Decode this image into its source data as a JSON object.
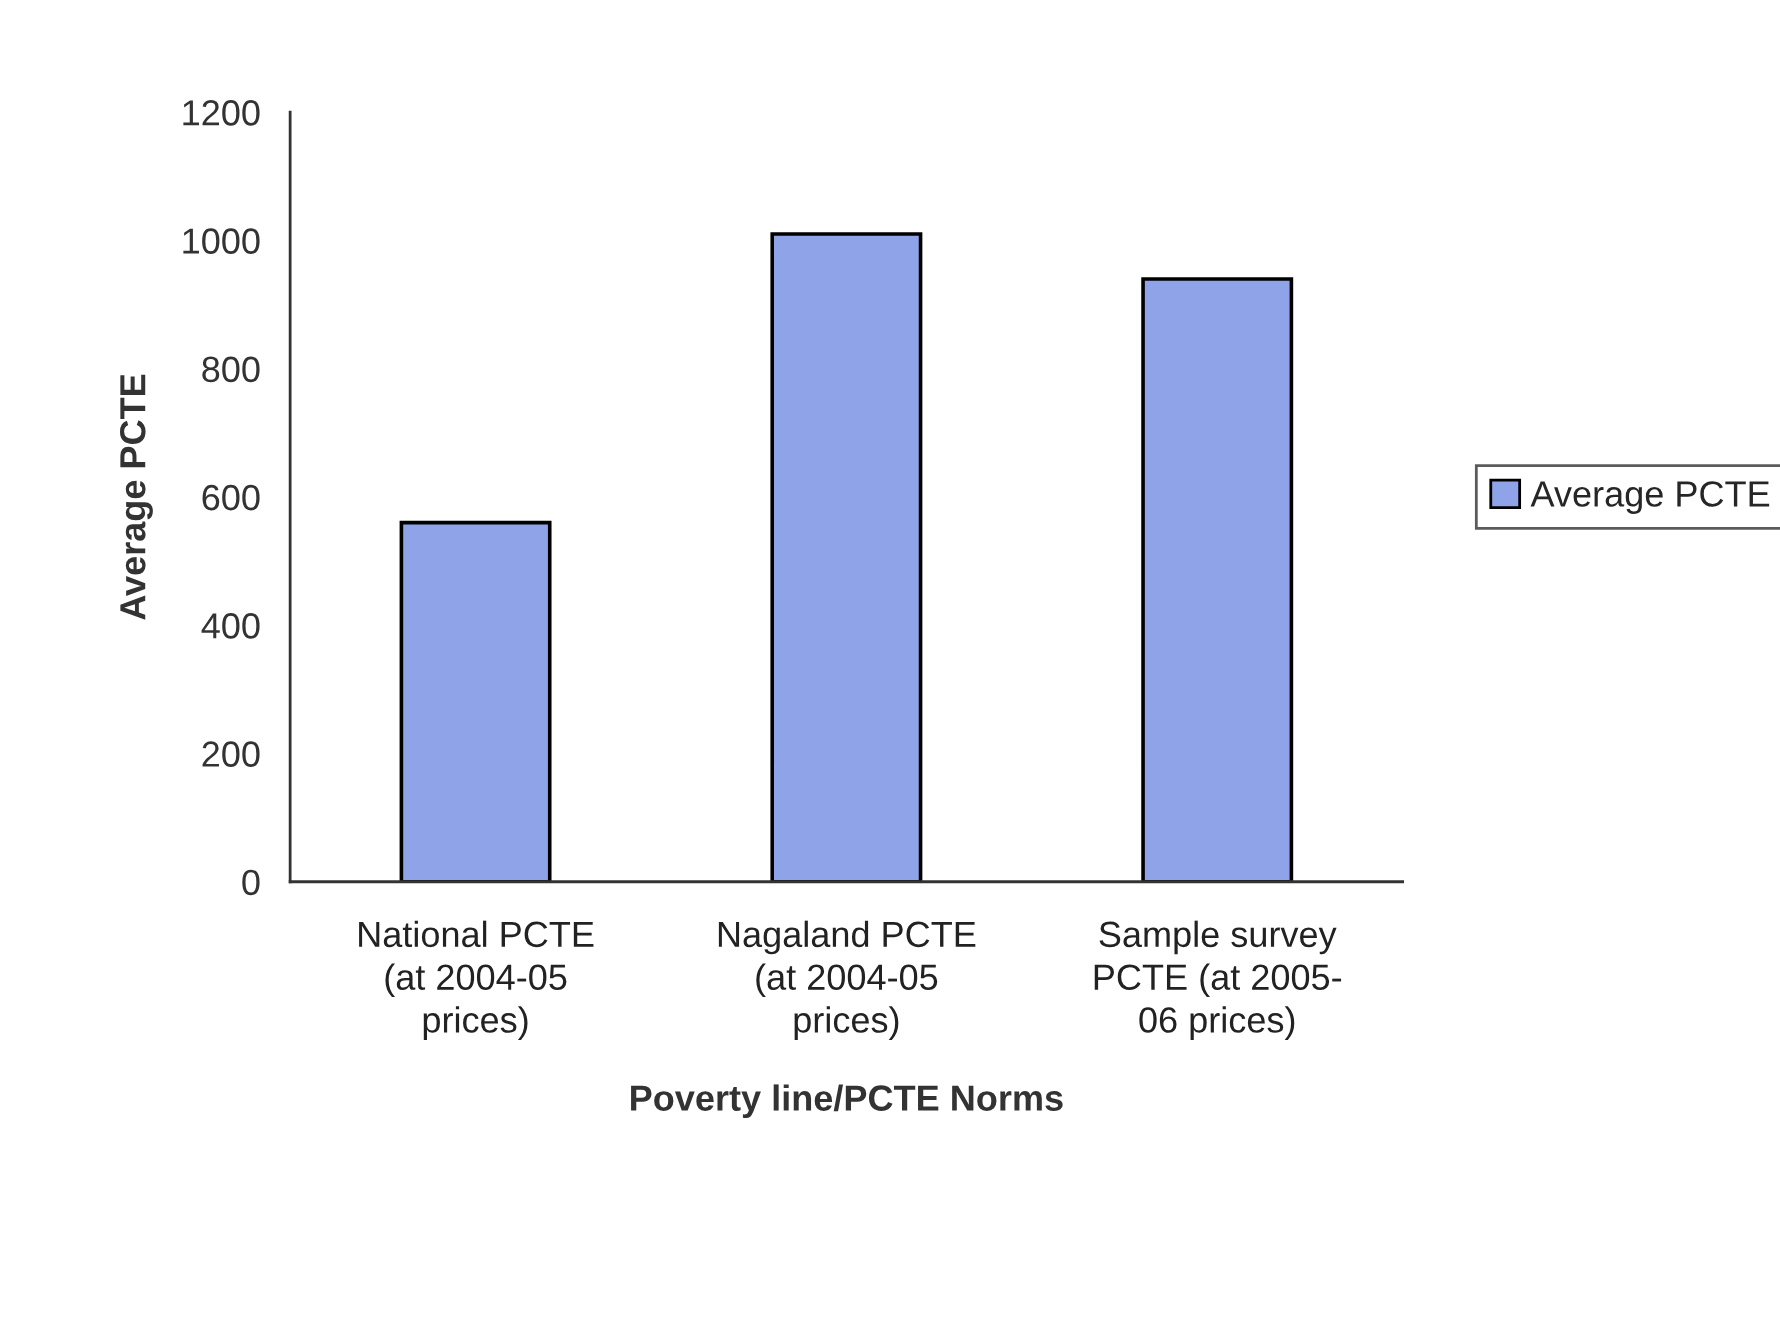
{
  "chart_data": {
    "type": "bar",
    "xlabel": "Poverty line/PCTE Norms",
    "ylabel": "Average PCTE",
    "categories": [
      "National PCTE\n(at 2004-05\nprices)",
      "Nagaland PCTE\n(at 2004-05\nprices)",
      "Sample survey\nPCTE (at 2005-\n06 prices)"
    ],
    "series": [
      {
        "name": "Average PCTE",
        "color": "#8fa4e8",
        "values": [
          560,
          1010,
          940
        ]
      }
    ],
    "ylim": [
      0,
      1200
    ],
    "yticks": [
      0,
      200,
      400,
      600,
      800,
      1000,
      1200
    ],
    "grid": false,
    "legend": "right"
  }
}
